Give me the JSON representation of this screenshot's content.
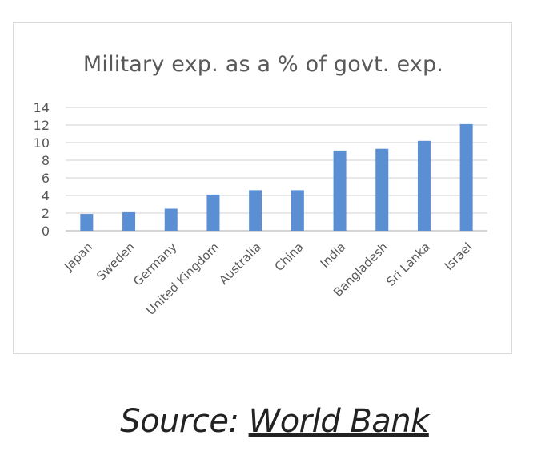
{
  "chart_data": {
    "type": "bar",
    "title": "Military exp. as a % of govt. exp.",
    "xlabel": "",
    "ylabel": "",
    "categories": [
      "Japan",
      "Sweden",
      "Germany",
      "United Kingdom",
      "Australia",
      "China",
      "India",
      "Bangladesh",
      "Sri Lanka",
      "Israel"
    ],
    "values": [
      1.9,
      2.1,
      2.5,
      4.1,
      4.6,
      4.6,
      9.1,
      9.3,
      10.2,
      12.1
    ],
    "ylim": [
      0,
      14
    ],
    "yticks": [
      0,
      2,
      4,
      6,
      8,
      10,
      12,
      14
    ],
    "grid": true,
    "bar_color": "#5a8fd4",
    "grid_color": "#d9d9d9"
  },
  "source": {
    "prefix": "Source: ",
    "link_text": "World Bank"
  }
}
